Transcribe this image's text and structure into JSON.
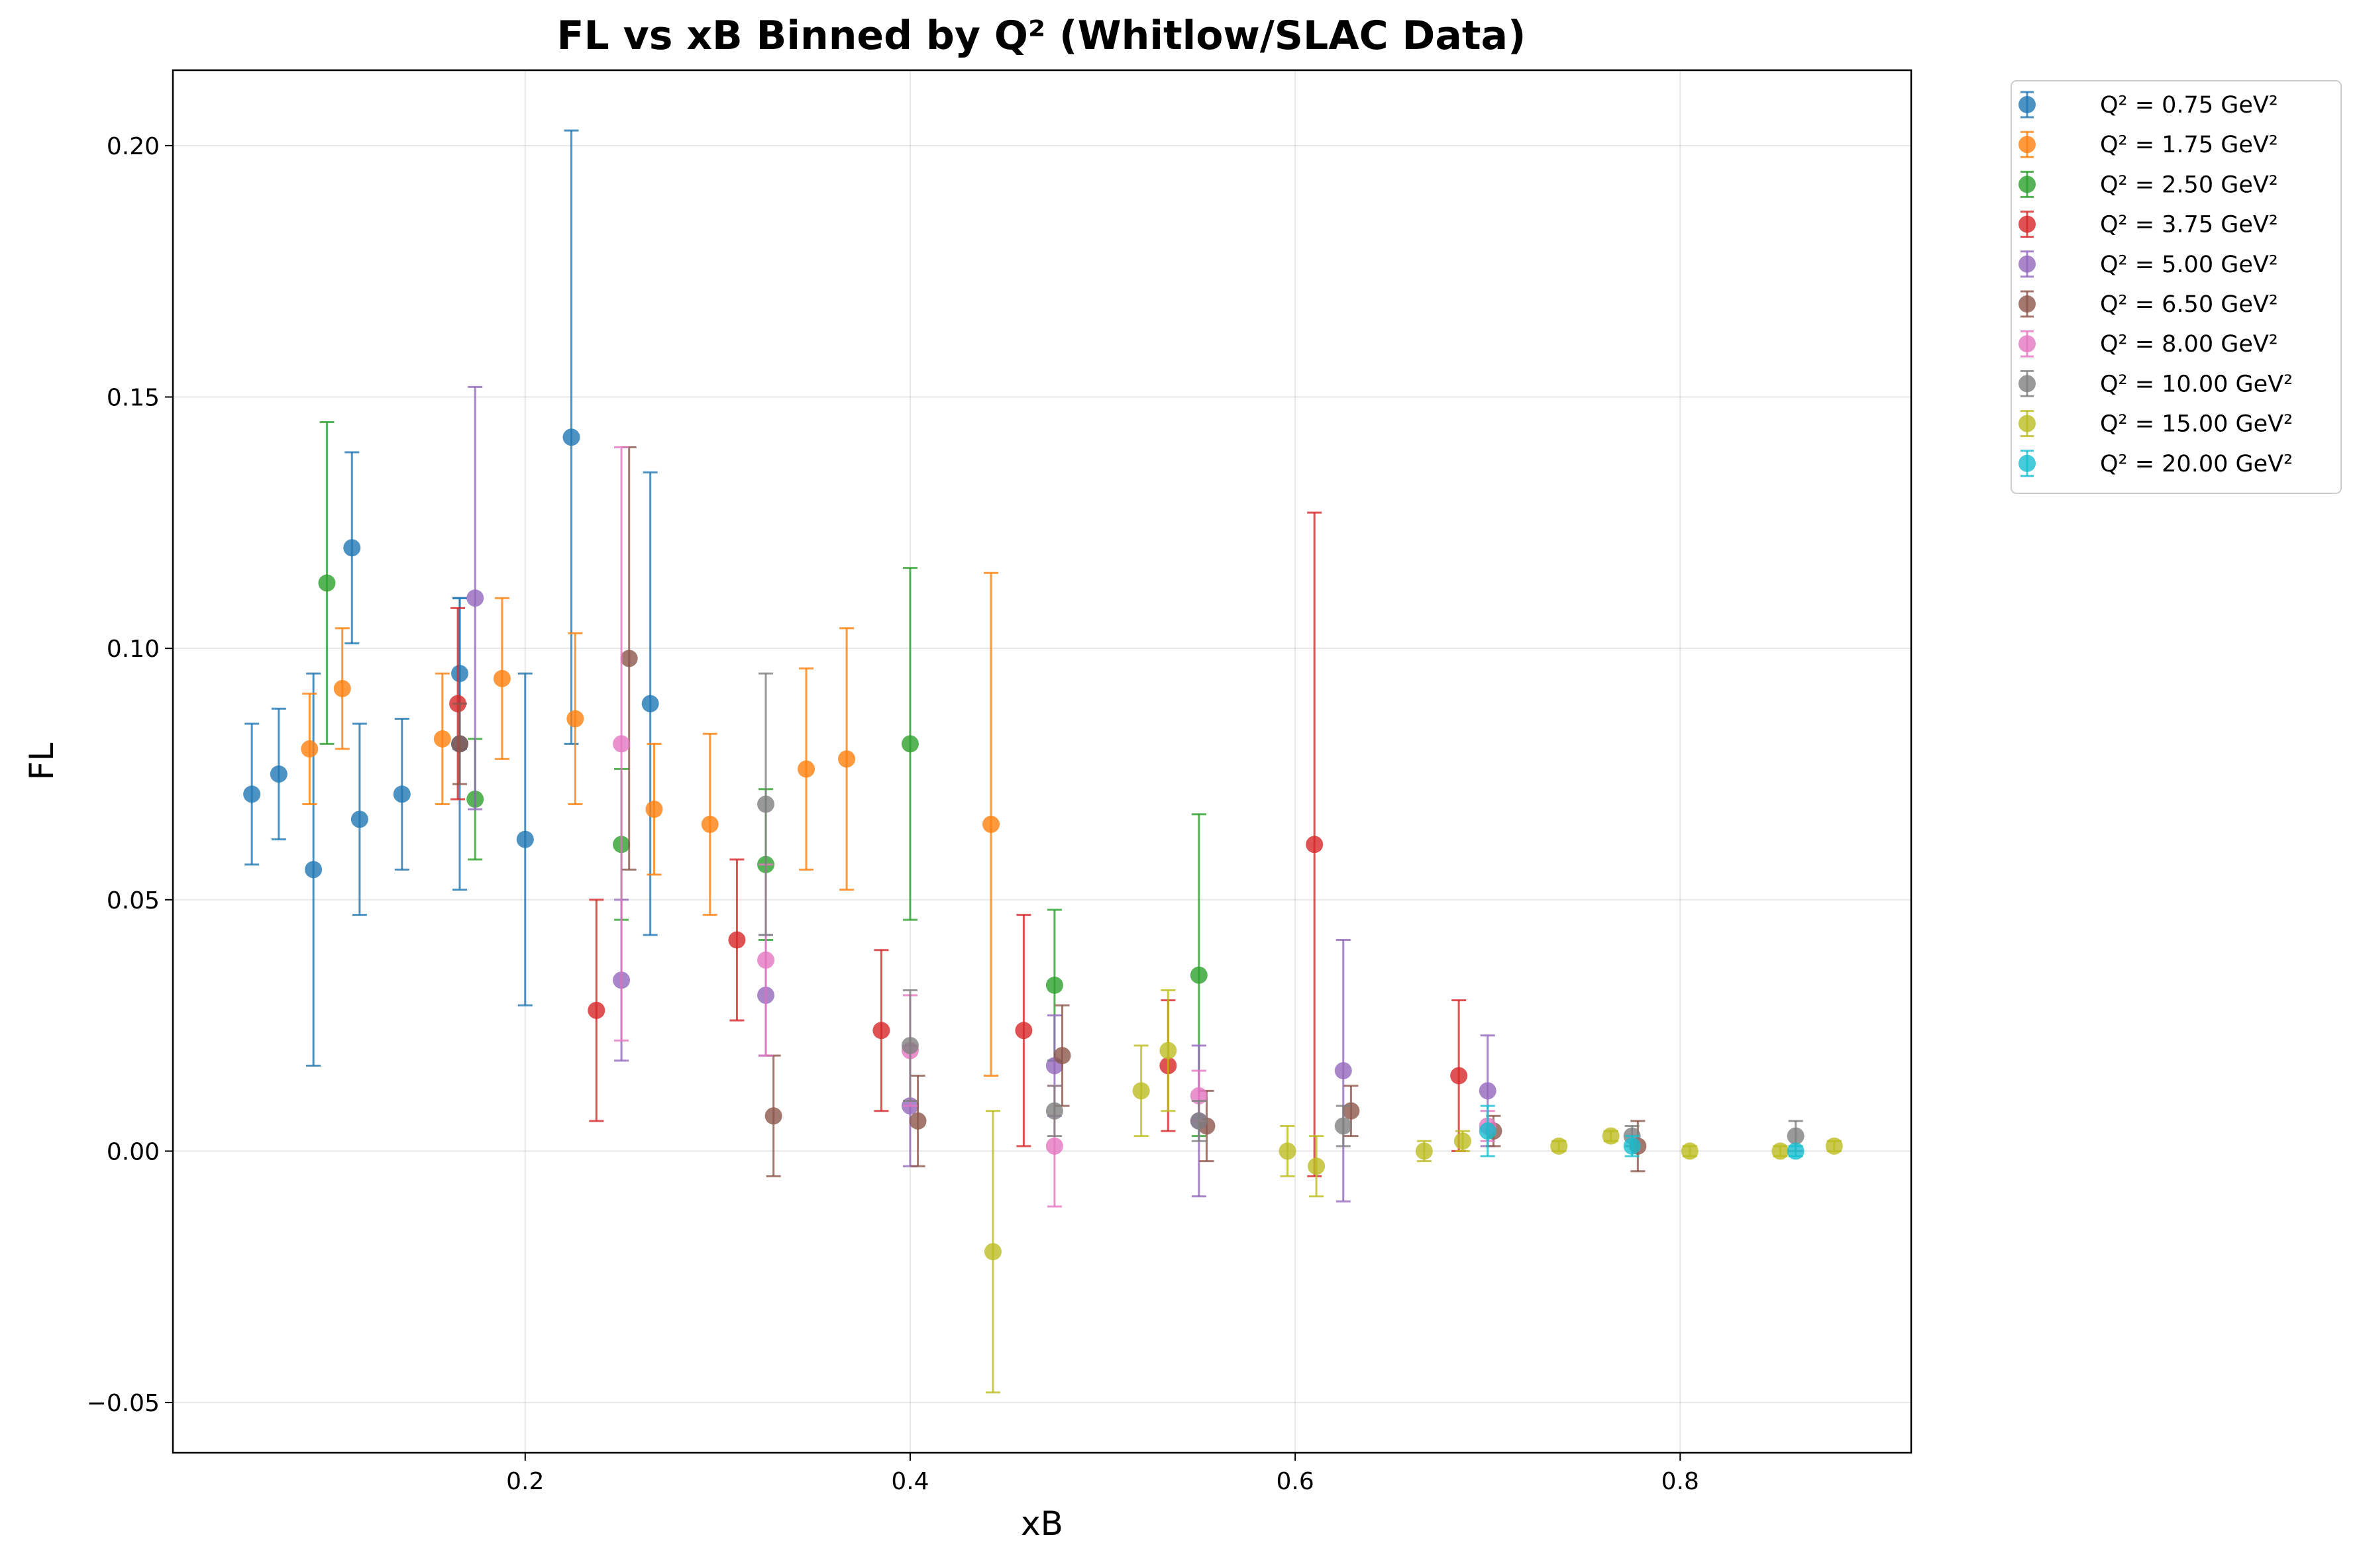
{
  "chart_data": {
    "type": "scatter",
    "title": "FL vs xB Binned by Q² (Whitlow/SLAC Data)",
    "xlabel": "xB",
    "ylabel": "FL",
    "xlim": [
      0.017,
      0.92
    ],
    "ylim": [
      -0.06,
      0.215
    ],
    "x_ticks": [
      0.2,
      0.4,
      0.6,
      0.8
    ],
    "y_ticks": [
      -0.05,
      0.0,
      0.05,
      0.1,
      0.15,
      0.2
    ],
    "x_tick_labels": [
      "0.2",
      "0.4",
      "0.6",
      "0.8"
    ],
    "y_tick_labels": [
      "−0.05",
      "0.00",
      "0.05",
      "0.10",
      "0.15",
      "0.20"
    ],
    "grid": true,
    "legend_position": "outside top-right",
    "series": [
      {
        "name": "Q² = 0.75 GeV²",
        "color": "#1f77b4",
        "points": [
          {
            "x": 0.058,
            "y": 0.071,
            "err": 0.014
          },
          {
            "x": 0.072,
            "y": 0.075,
            "err": 0.013
          },
          {
            "x": 0.09,
            "y": 0.056,
            "err": 0.039
          },
          {
            "x": 0.11,
            "y": 0.12,
            "err": 0.019
          },
          {
            "x": 0.114,
            "y": 0.066,
            "err": 0.019
          },
          {
            "x": 0.136,
            "y": 0.071,
            "err": 0.015
          },
          {
            "x": 0.166,
            "y": 0.095,
            "err": 0.015
          },
          {
            "x": 0.166,
            "y": 0.081,
            "err": 0.029
          },
          {
            "x": 0.2,
            "y": 0.062,
            "err": 0.033
          },
          {
            "x": 0.224,
            "y": 0.142,
            "err": 0.061
          },
          {
            "x": 0.265,
            "y": 0.089,
            "err": 0.046
          }
        ]
      },
      {
        "name": "Q² = 1.75 GeV²",
        "color": "#ff7f0e",
        "points": [
          {
            "x": 0.088,
            "y": 0.08,
            "err": 0.011
          },
          {
            "x": 0.105,
            "y": 0.092,
            "err": 0.012
          },
          {
            "x": 0.157,
            "y": 0.082,
            "err": 0.013
          },
          {
            "x": 0.188,
            "y": 0.094,
            "err": 0.016
          },
          {
            "x": 0.226,
            "y": 0.086,
            "err": 0.017
          },
          {
            "x": 0.267,
            "y": 0.068,
            "err": 0.013
          },
          {
            "x": 0.296,
            "y": 0.065,
            "err": 0.018
          },
          {
            "x": 0.346,
            "y": 0.076,
            "err": 0.02
          },
          {
            "x": 0.367,
            "y": 0.078,
            "err": 0.026
          },
          {
            "x": 0.442,
            "y": 0.065,
            "err": 0.05
          }
        ]
      },
      {
        "name": "Q² = 2.50 GeV²",
        "color": "#2ca02c",
        "points": [
          {
            "x": 0.097,
            "y": 0.113,
            "err": 0.032
          },
          {
            "x": 0.174,
            "y": 0.07,
            "err": 0.012
          },
          {
            "x": 0.25,
            "y": 0.061,
            "err": 0.015
          },
          {
            "x": 0.325,
            "y": 0.057,
            "err": 0.015
          },
          {
            "x": 0.4,
            "y": 0.081,
            "err": 0.035
          },
          {
            "x": 0.475,
            "y": 0.033,
            "err": 0.015
          },
          {
            "x": 0.55,
            "y": 0.035,
            "err": 0.032
          }
        ]
      },
      {
        "name": "Q² = 3.75 GeV²",
        "color": "#d62728",
        "points": [
          {
            "x": 0.165,
            "y": 0.089,
            "err": 0.019
          },
          {
            "x": 0.237,
            "y": 0.028,
            "err": 0.022
          },
          {
            "x": 0.31,
            "y": 0.042,
            "err": 0.016
          },
          {
            "x": 0.385,
            "y": 0.024,
            "err": 0.016
          },
          {
            "x": 0.459,
            "y": 0.024,
            "err": 0.023
          },
          {
            "x": 0.534,
            "y": 0.017,
            "err": 0.013
          },
          {
            "x": 0.61,
            "y": 0.061,
            "err": 0.066
          },
          {
            "x": 0.685,
            "y": 0.015,
            "err": 0.015
          }
        ]
      },
      {
        "name": "Q² = 5.00 GeV²",
        "color": "#9467bd",
        "points": [
          {
            "x": 0.174,
            "y": 0.11,
            "err": 0.042
          },
          {
            "x": 0.25,
            "y": 0.034,
            "err": 0.016
          },
          {
            "x": 0.325,
            "y": 0.031,
            "err": 0.012
          },
          {
            "x": 0.4,
            "y": 0.009,
            "err": 0.012
          },
          {
            "x": 0.475,
            "y": 0.017,
            "err": 0.01
          },
          {
            "x": 0.55,
            "y": 0.006,
            "err": 0.015
          },
          {
            "x": 0.625,
            "y": 0.016,
            "err": 0.026
          },
          {
            "x": 0.7,
            "y": 0.012,
            "err": 0.011
          }
        ]
      },
      {
        "name": "Q² = 6.50 GeV²",
        "color": "#8c564b",
        "points": [
          {
            "x": 0.166,
            "y": 0.081,
            "err": 0.008
          },
          {
            "x": 0.254,
            "y": 0.098,
            "err": 0.042
          },
          {
            "x": 0.329,
            "y": 0.007,
            "err": 0.012
          },
          {
            "x": 0.404,
            "y": 0.006,
            "err": 0.009
          },
          {
            "x": 0.479,
            "y": 0.019,
            "err": 0.01
          },
          {
            "x": 0.554,
            "y": 0.005,
            "err": 0.007
          },
          {
            "x": 0.629,
            "y": 0.008,
            "err": 0.005
          },
          {
            "x": 0.703,
            "y": 0.004,
            "err": 0.003
          },
          {
            "x": 0.778,
            "y": 0.001,
            "err": 0.005
          }
        ]
      },
      {
        "name": "Q² = 8.00 GeV²",
        "color": "#e377c2",
        "points": [
          {
            "x": 0.25,
            "y": 0.081,
            "err": 0.059
          },
          {
            "x": 0.325,
            "y": 0.038,
            "err": 0.019
          },
          {
            "x": 0.4,
            "y": 0.02,
            "err": 0.011
          },
          {
            "x": 0.475,
            "y": 0.001,
            "err": 0.012
          },
          {
            "x": 0.55,
            "y": 0.011,
            "err": 0.005
          },
          {
            "x": 0.7,
            "y": 0.005,
            "err": 0.003
          }
        ]
      },
      {
        "name": "Q² = 10.00 GeV²",
        "color": "#7f7f7f",
        "points": [
          {
            "x": 0.325,
            "y": 0.069,
            "err": 0.026
          },
          {
            "x": 0.4,
            "y": 0.021,
            "err": 0.011
          },
          {
            "x": 0.475,
            "y": 0.008,
            "err": 0.005
          },
          {
            "x": 0.55,
            "y": 0.006,
            "err": 0.004
          },
          {
            "x": 0.625,
            "y": 0.005,
            "err": 0.004
          },
          {
            "x": 0.775,
            "y": 0.003,
            "err": 0.002
          },
          {
            "x": 0.86,
            "y": 0.003,
            "err": 0.003
          }
        ]
      },
      {
        "name": "Q² = 15.00 GeV²",
        "color": "#bcbd22",
        "points": [
          {
            "x": 0.443,
            "y": -0.02,
            "err": 0.028
          },
          {
            "x": 0.52,
            "y": 0.012,
            "err": 0.009
          },
          {
            "x": 0.534,
            "y": 0.02,
            "err": 0.012
          },
          {
            "x": 0.596,
            "y": 0.0,
            "err": 0.005
          },
          {
            "x": 0.611,
            "y": -0.003,
            "err": 0.006
          },
          {
            "x": 0.667,
            "y": 0.0,
            "err": 0.002
          },
          {
            "x": 0.687,
            "y": 0.002,
            "err": 0.002
          },
          {
            "x": 0.737,
            "y": 0.001,
            "err": 0.001
          },
          {
            "x": 0.764,
            "y": 0.003,
            "err": 0.001
          },
          {
            "x": 0.805,
            "y": 0.0,
            "err": 0.001
          },
          {
            "x": 0.852,
            "y": 0.0,
            "err": 0.001
          },
          {
            "x": 0.88,
            "y": 0.001,
            "err": 0.001
          }
        ]
      },
      {
        "name": "Q² = 20.00 GeV²",
        "color": "#17becf",
        "points": [
          {
            "x": 0.7,
            "y": 0.004,
            "err": 0.005
          },
          {
            "x": 0.775,
            "y": 0.001,
            "err": 0.002
          },
          {
            "x": 0.86,
            "y": 0.0,
            "err": 0.001
          }
        ]
      }
    ]
  }
}
